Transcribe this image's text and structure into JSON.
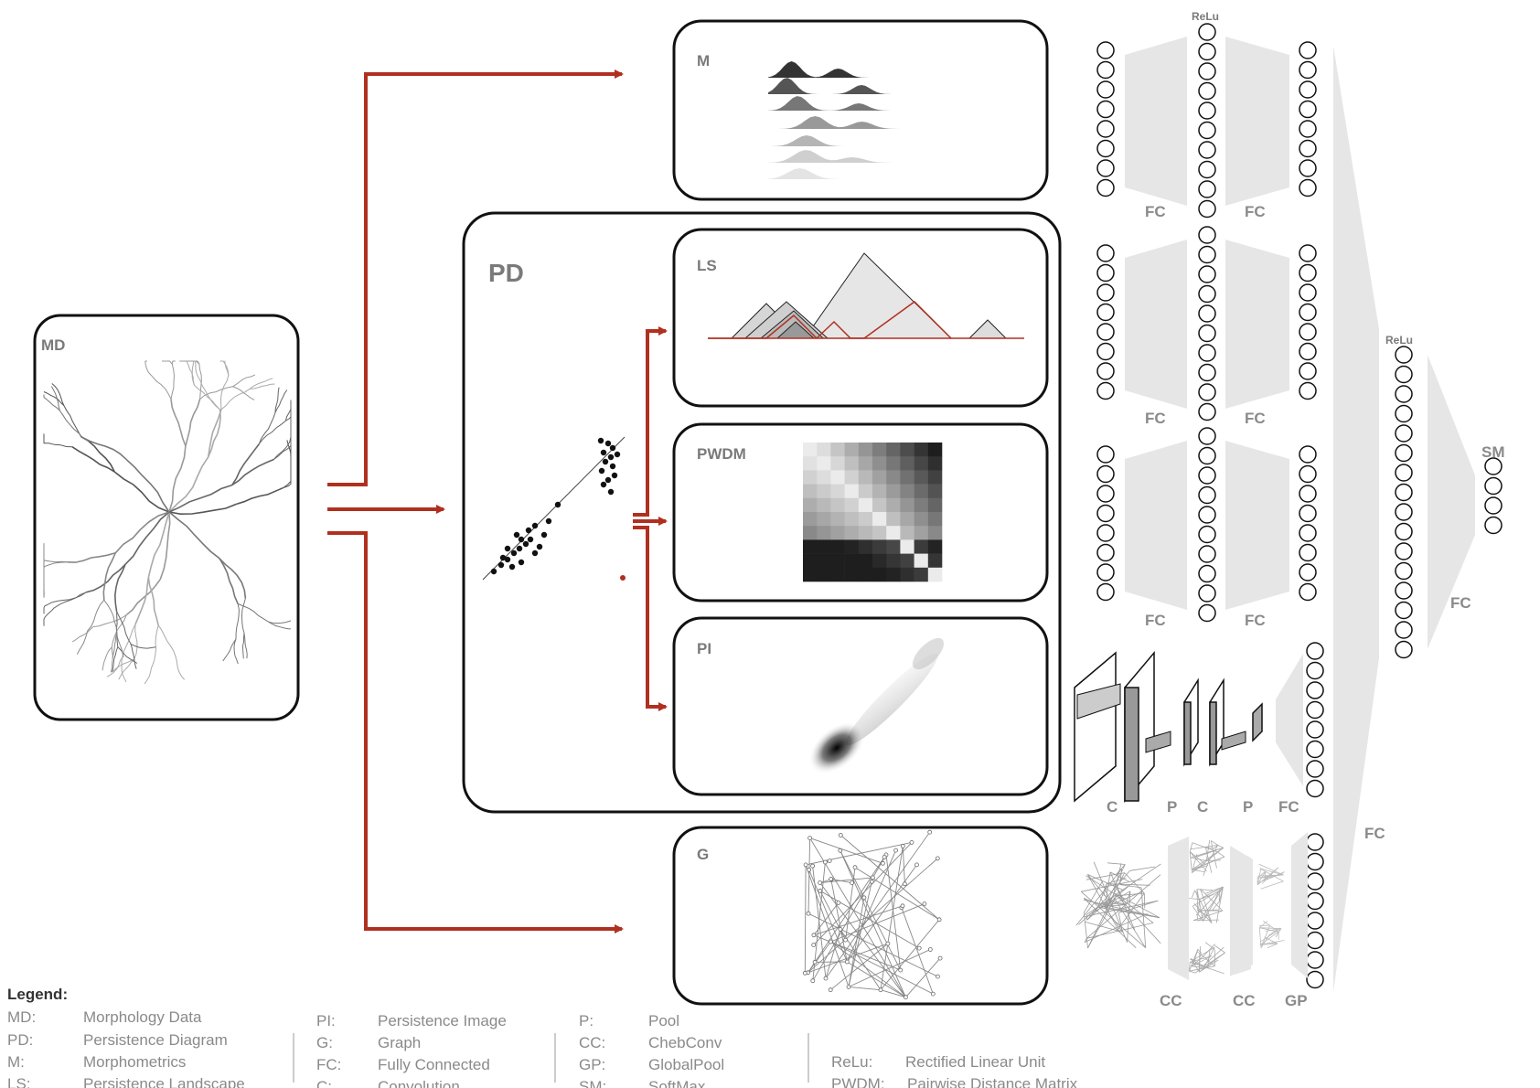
{
  "boxes": {
    "md": "MD",
    "pd": "PD",
    "m": "M",
    "ls": "LS",
    "pwdm": "PWDM",
    "pi": "PI",
    "g": "G"
  },
  "network": {
    "relu": "ReLu",
    "fc": "FC",
    "c": "C",
    "p": "P",
    "cc": "CC",
    "gp": "GP",
    "sm": "SM"
  },
  "colors": {
    "arrow": "#b03020",
    "box_stroke": "#111111",
    "trapezoid": "#e6e6e6",
    "label": "#7a7a7a"
  },
  "legend": {
    "title": "Legend:",
    "columns": [
      [
        {
          "key": "MD:",
          "value": "Morphology Data"
        },
        {
          "key": "PD:",
          "value": "Persistence Diagram"
        },
        {
          "key": "M:",
          "value": "Morphometrics"
        },
        {
          "key": "LS:",
          "value": "Persistence Landscape"
        }
      ],
      [
        {
          "key": "PI:",
          "value": "Persistence Image"
        },
        {
          "key": "G:",
          "value": "Graph"
        },
        {
          "key": "FC:",
          "value": "Fully Connected"
        },
        {
          "key": "C:",
          "value": "Convolution"
        }
      ],
      [
        {
          "key": "P:",
          "value": "Pool"
        },
        {
          "key": "CC:",
          "value": "ChebConv"
        },
        {
          "key": "GP:",
          "value": "GlobalPool"
        },
        {
          "key": "SM:",
          "value": "SoftMax"
        }
      ],
      [
        {
          "key": "ReLu:",
          "value": "Rectified Linear Unit"
        },
        {
          "key": "PWDM:",
          "value": "Pairwise Distance Matrix"
        }
      ]
    ]
  }
}
